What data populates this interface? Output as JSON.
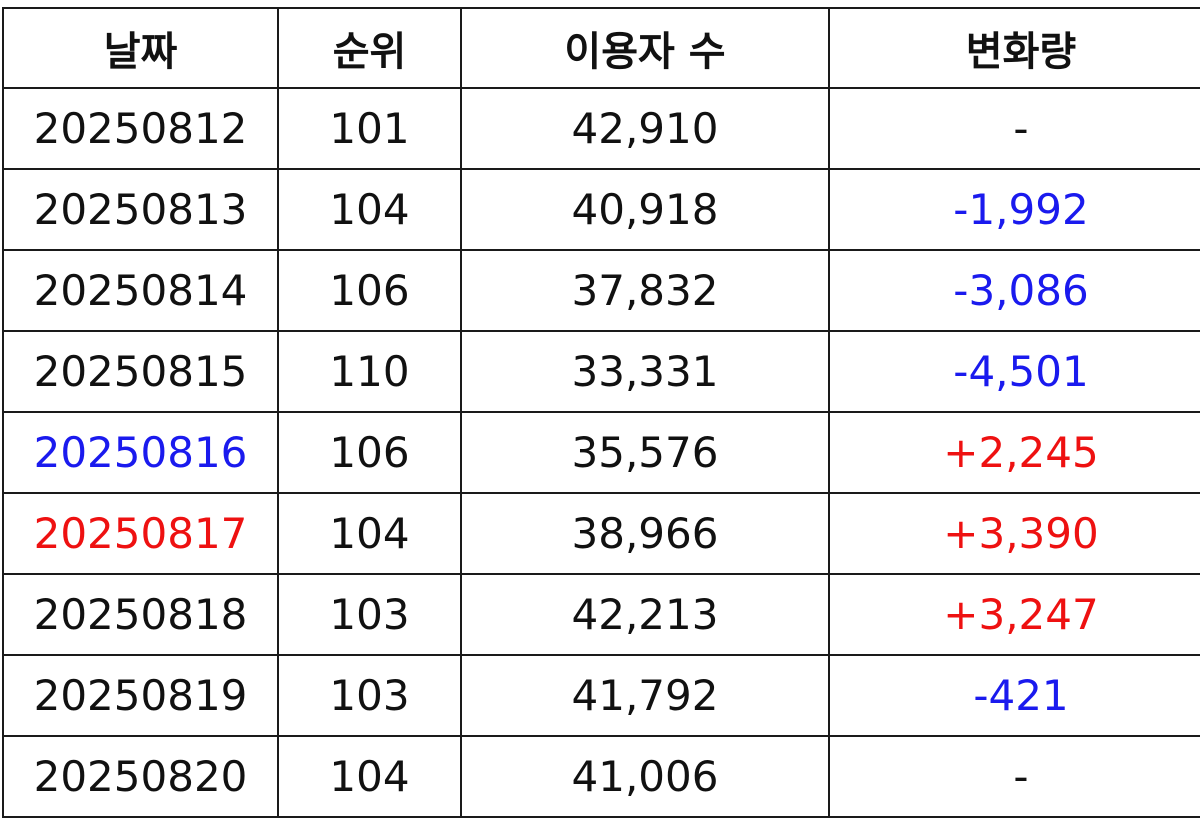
{
  "colors": {
    "default": "#111111",
    "blue": "#1a1aee",
    "red": "#ee1111"
  },
  "table": {
    "headers": [
      "날짜",
      "순위",
      "이용자 수",
      "변화량"
    ],
    "rows": [
      {
        "date": "20250812",
        "rank": "101",
        "users": "42,910",
        "change": "-",
        "date_color": "default",
        "change_color": "default"
      },
      {
        "date": "20250813",
        "rank": "104",
        "users": "40,918",
        "change": "-1,992",
        "date_color": "default",
        "change_color": "blue"
      },
      {
        "date": "20250814",
        "rank": "106",
        "users": "37,832",
        "change": "-3,086",
        "date_color": "default",
        "change_color": "blue"
      },
      {
        "date": "20250815",
        "rank": "110",
        "users": "33,331",
        "change": "-4,501",
        "date_color": "default",
        "change_color": "blue"
      },
      {
        "date": "20250816",
        "rank": "106",
        "users": "35,576",
        "change": "+2,245",
        "date_color": "blue",
        "change_color": "red"
      },
      {
        "date": "20250817",
        "rank": "104",
        "users": "38,966",
        "change": "+3,390",
        "date_color": "red",
        "change_color": "red"
      },
      {
        "date": "20250818",
        "rank": "103",
        "users": "42,213",
        "change": "+3,247",
        "date_color": "default",
        "change_color": "red"
      },
      {
        "date": "20250819",
        "rank": "103",
        "users": "41,792",
        "change": "-421",
        "date_color": "default",
        "change_color": "blue"
      },
      {
        "date": "20250820",
        "rank": "104",
        "users": "41,006",
        "change": "-",
        "date_color": "default",
        "change_color": "default"
      }
    ]
  }
}
